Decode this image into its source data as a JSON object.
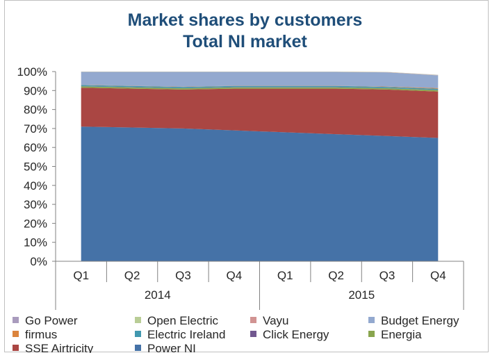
{
  "chart_data": {
    "type": "area",
    "stacked": true,
    "percent": true,
    "title": [
      "Market shares by customers",
      "Total NI market"
    ],
    "categories": [
      "Q1",
      "Q2",
      "Q3",
      "Q4",
      "Q1",
      "Q2",
      "Q3",
      "Q4"
    ],
    "groups": [
      {
        "label": "2014",
        "span": [
          0,
          3
        ]
      },
      {
        "label": "2015",
        "span": [
          4,
          7
        ]
      }
    ],
    "y_ticks": [
      "0%",
      "10%",
      "20%",
      "30%",
      "40%",
      "50%",
      "60%",
      "70%",
      "80%",
      "90%",
      "100%"
    ],
    "ylim": [
      0,
      100
    ],
    "grid": false,
    "legend_position": "bottom",
    "series": [
      {
        "name": "Power NI",
        "color": "#4572a7",
        "values": [
          71,
          70.5,
          70,
          69,
          68,
          67,
          66,
          65
        ]
      },
      {
        "name": "SSE Airtricity",
        "color": "#aa4643",
        "values": [
          20.5,
          20.5,
          20.5,
          22,
          23,
          24,
          24.5,
          24.5
        ]
      },
      {
        "name": "Energia",
        "color": "#89a54e",
        "values": [
          0.7,
          0.7,
          0.7,
          0.7,
          0.7,
          0.7,
          0.7,
          0.7
        ]
      },
      {
        "name": "Click Energy",
        "color": "#71588f",
        "values": [
          0.1,
          0.1,
          0.1,
          0.1,
          0.1,
          0.1,
          0.1,
          0.1
        ]
      },
      {
        "name": "Electric Ireland",
        "color": "#4198af",
        "values": [
          0.6,
          0.6,
          0.6,
          0.6,
          0.6,
          0.6,
          0.6,
          0.6
        ]
      },
      {
        "name": "firmus",
        "color": "#db843d",
        "values": [
          0.1,
          0.1,
          0.1,
          0.1,
          0.1,
          0.1,
          0.2,
          0.4
        ]
      },
      {
        "name": "Budget Energy",
        "color": "#93a9cf",
        "values": [
          6.8,
          7.3,
          7.8,
          7.3,
          7.3,
          7.3,
          7.5,
          6.7
        ]
      },
      {
        "name": "Vayu",
        "color": "#d19392",
        "values": [
          0.1,
          0.1,
          0.1,
          0.1,
          0.1,
          0.1,
          0.1,
          0.1
        ]
      },
      {
        "name": "Open Electric",
        "color": "#b9cd96",
        "values": [
          0.1,
          0.1,
          0.1,
          0.1,
          0.1,
          0.1,
          0.1,
          0.1
        ]
      },
      {
        "name": "Go Power",
        "color": "#a99bbd",
        "values": [
          0,
          0,
          0,
          0,
          0,
          0,
          0,
          0.1
        ]
      }
    ],
    "legend_order": [
      "Go Power",
      "Open Electric",
      "Vayu",
      "Budget Energy",
      "firmus",
      "Electric Ireland",
      "Click Energy",
      "Energia",
      "SSE Airtricity",
      "Power NI"
    ]
  }
}
